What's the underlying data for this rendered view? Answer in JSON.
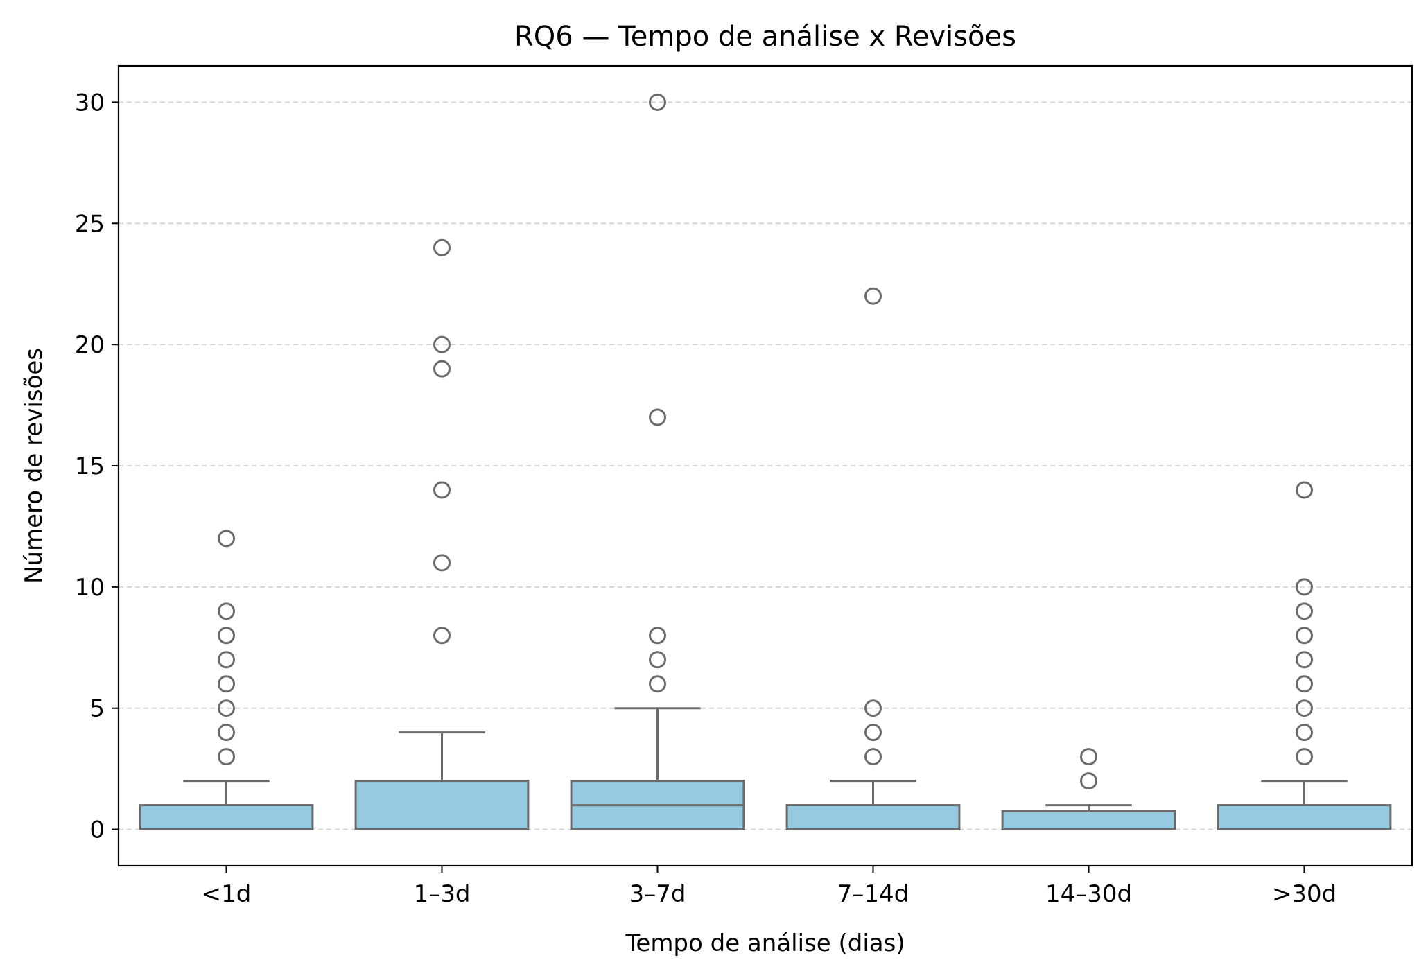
{
  "chart_data": {
    "type": "box",
    "title": "RQ6 — Tempo de análise x Revisões",
    "xlabel": "Tempo de análise (dias)",
    "ylabel": "Número de revisões",
    "ylim": [
      -1.5,
      31.5
    ],
    "yticks": [
      0,
      5,
      10,
      15,
      20,
      25,
      30
    ],
    "grid": "y-dashed",
    "categories": [
      "<1d",
      "1–3d",
      "3–7d",
      "7–14d",
      "14–30d",
      ">30d"
    ],
    "boxes": [
      {
        "q1": 0,
        "median": 0,
        "q3": 1,
        "whisker_low": 0,
        "whisker_high": 2,
        "outliers": [
          3,
          4,
          5,
          6,
          7,
          8,
          9,
          12
        ]
      },
      {
        "q1": 0,
        "median": 0,
        "q3": 2,
        "whisker_low": 0,
        "whisker_high": 4,
        "outliers": [
          8,
          11,
          14,
          19,
          20,
          24
        ]
      },
      {
        "q1": 0,
        "median": 1,
        "q3": 2,
        "whisker_low": 0,
        "whisker_high": 5,
        "outliers": [
          6,
          7,
          8,
          17,
          30
        ]
      },
      {
        "q1": 0,
        "median": 0,
        "q3": 1,
        "whisker_low": 0,
        "whisker_high": 2,
        "outliers": [
          3,
          4,
          5,
          22
        ]
      },
      {
        "q1": 0,
        "median": 0,
        "q3": 0.75,
        "whisker_low": 0,
        "whisker_high": 1,
        "outliers": [
          2,
          3
        ]
      },
      {
        "q1": 0,
        "median": 0,
        "q3": 1,
        "whisker_low": 0,
        "whisker_high": 2,
        "outliers": [
          3,
          4,
          5,
          6,
          7,
          8,
          9,
          10,
          14
        ]
      }
    ],
    "colors": {
      "box_fill": "#95cae1",
      "line": "#6b6b6b",
      "grid": "#d3d3d3",
      "axes": "#000000"
    }
  }
}
